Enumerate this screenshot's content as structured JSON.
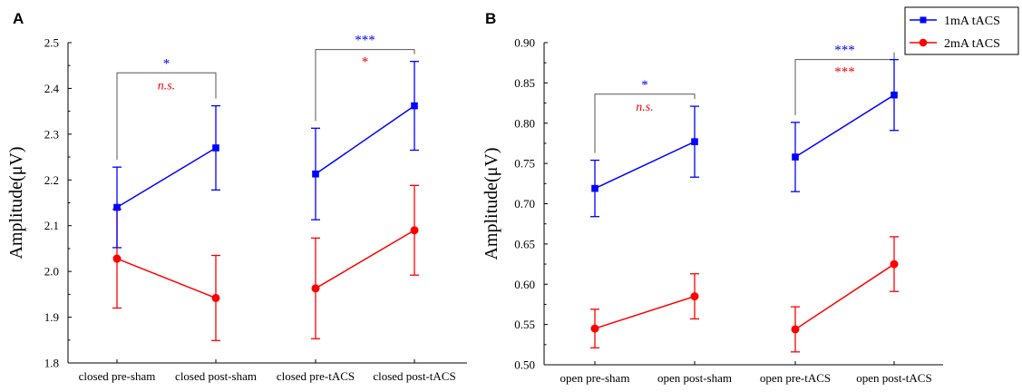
{
  "chart_data": [
    {
      "panel": "A",
      "type": "line",
      "categories": [
        "closed pre-sham",
        "closed post-sham",
        "closed pre-tACS",
        "closed post-tACS"
      ],
      "ylabel": "Amplitude(μV)",
      "ylim": [
        1.8,
        2.5
      ],
      "yticks": [
        1.8,
        1.9,
        2.0,
        2.1,
        2.2,
        2.3,
        2.4,
        2.5
      ],
      "ytick_labels": [
        "1.8",
        "1.9",
        "2.0",
        "2.1",
        "2.2",
        "2.3",
        "2.4",
        "2.5"
      ],
      "series": [
        {
          "name": "1mA tACS",
          "color": "#0000ff",
          "marker": "square",
          "values": [
            2.14,
            2.27,
            2.213,
            2.362
          ],
          "err": [
            0.088,
            0.092,
            0.1,
            0.097
          ]
        },
        {
          "name": "2mA tACS",
          "color": "#ff0000",
          "marker": "circle",
          "values": [
            2.028,
            1.942,
            1.963,
            2.09
          ],
          "err": [
            0.108,
            0.093,
            0.11,
            0.098
          ]
        }
      ],
      "brackets": [
        {
          "from": 0,
          "to": 1,
          "top": 2.434,
          "labels": [
            {
              "text": "*",
              "color": "#0000ff",
              "italic": false
            },
            {
              "text": "n.s.",
              "color": "#ff0000",
              "italic": true
            }
          ]
        },
        {
          "from": 2,
          "to": 3,
          "top": 2.485,
          "labels": [
            {
              "text": "***",
              "color": "#0000ff",
              "italic": false
            },
            {
              "text": "*",
              "color": "#ff0000",
              "italic": false
            }
          ]
        }
      ]
    },
    {
      "panel": "B",
      "type": "line",
      "categories": [
        "open pre-sham",
        "open post-sham",
        "open pre-tACS",
        "open post-tACS"
      ],
      "ylabel": "Amplitude(μV)",
      "ylim": [
        0.5,
        0.9
      ],
      "yticks": [
        0.5,
        0.55,
        0.6,
        0.65,
        0.7,
        0.75,
        0.8,
        0.85,
        0.9
      ],
      "ytick_labels": [
        "0.50",
        "0.55",
        "0.60",
        "0.65",
        "0.70",
        "0.75",
        "0.80",
        "0.85",
        "0.90"
      ],
      "legend": {
        "position": "top-right",
        "entries": [
          "1mA tACS",
          "2mA tACS"
        ]
      },
      "series": [
        {
          "name": "1mA tACS",
          "color": "#0000ff",
          "marker": "square",
          "values": [
            0.719,
            0.777,
            0.758,
            0.835
          ],
          "err": [
            0.035,
            0.044,
            0.043,
            0.044
          ]
        },
        {
          "name": "2mA tACS",
          "color": "#ff0000",
          "marker": "circle",
          "values": [
            0.545,
            0.585,
            0.544,
            0.625
          ],
          "err": [
            0.024,
            0.028,
            0.028,
            0.034
          ]
        }
      ],
      "brackets": [
        {
          "from": 0,
          "to": 1,
          "top": 0.836,
          "labels": [
            {
              "text": "*",
              "color": "#0000ff",
              "italic": false
            },
            {
              "text": "n.s.",
              "color": "#ff0000",
              "italic": true
            }
          ]
        },
        {
          "from": 2,
          "to": 3,
          "top": 0.879,
          "labels": [
            {
              "text": "***",
              "color": "#0000ff",
              "italic": false
            },
            {
              "text": "***",
              "color": "#ff0000",
              "italic": false
            }
          ]
        }
      ]
    }
  ]
}
